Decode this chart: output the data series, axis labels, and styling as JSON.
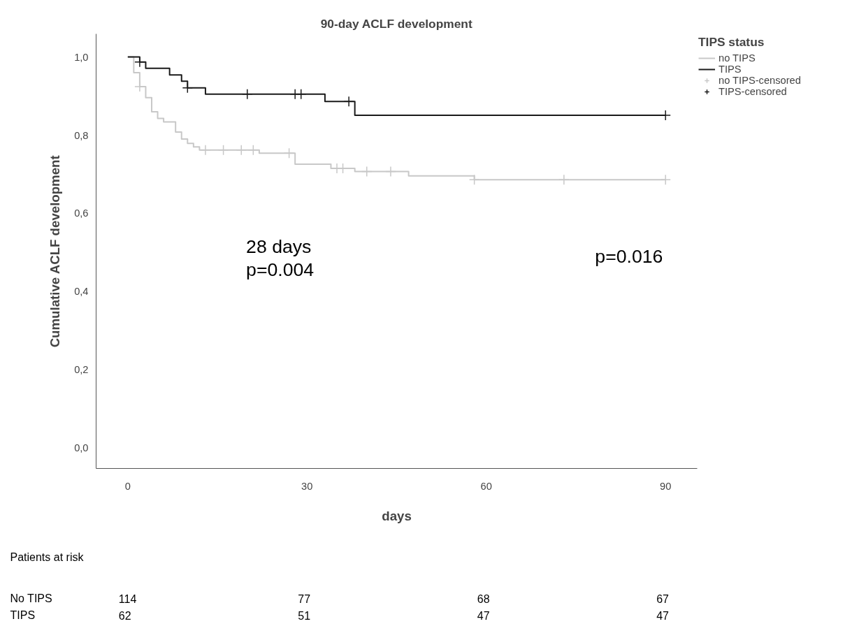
{
  "chart_data": {
    "type": "step",
    "title": "90-day ACLF development",
    "xlabel": "days",
    "ylabel": "Cumulative ACLF development",
    "legend_title": "TIPS status",
    "xlim": [
      -5.3,
      95.3
    ],
    "ylim": [
      -0.052,
      1.059
    ],
    "xticks": [
      0,
      30,
      60,
      90
    ],
    "yticks": [
      {
        "value": 0,
        "label": "0,0"
      },
      {
        "value": 0.2,
        "label": "0,2"
      },
      {
        "value": 0.4,
        "label": "0,4"
      },
      {
        "value": 0.6,
        "label": "0,6"
      },
      {
        "value": 0.8,
        "label": "0,8"
      },
      {
        "value": 1,
        "label": "1,0"
      }
    ],
    "grid": false,
    "legend": "right",
    "series": [
      {
        "name": "no TIPS",
        "color": "#c8c8c8",
        "x": [
          0,
          1,
          2,
          3,
          4,
          5,
          6,
          8,
          9,
          10,
          11,
          12,
          22,
          28,
          34,
          38,
          47,
          58,
          90
        ],
        "values": [
          1.0,
          0.96,
          0.924,
          0.896,
          0.86,
          0.843,
          0.834,
          0.808,
          0.79,
          0.779,
          0.77,
          0.762,
          0.754,
          0.726,
          0.715,
          0.707,
          0.696,
          0.686,
          0.686
        ]
      },
      {
        "name": "TIPS",
        "color": "#1a1a1a",
        "x": [
          0,
          2,
          3,
          7,
          9,
          10,
          13,
          33,
          38,
          90
        ],
        "values": [
          1.0,
          0.987,
          0.971,
          0.954,
          0.938,
          0.921,
          0.905,
          0.886,
          0.851,
          0.851
        ]
      },
      {
        "name": "no TIPS-censored",
        "type": "scatter",
        "marker": "cross",
        "color": "#c8c8c8",
        "x": [
          2,
          13,
          16,
          19,
          21,
          27,
          35,
          36,
          40,
          44,
          58,
          73,
          90
        ],
        "values": [
          0.924,
          0.762,
          0.762,
          0.762,
          0.762,
          0.754,
          0.715,
          0.715,
          0.707,
          0.707,
          0.686,
          0.686,
          0.686
        ]
      },
      {
        "name": "TIPS-censored",
        "type": "scatter",
        "marker": "cross",
        "color": "#1a1a1a",
        "x": [
          2,
          10,
          20,
          28,
          29,
          37,
          90
        ],
        "values": [
          0.987,
          0.921,
          0.905,
          0.905,
          0.905,
          0.886,
          0.851
        ]
      }
    ],
    "annotations": [
      "28 days",
      "p=0.004",
      "p=0.016",
      "Patients at risk",
      "No TIPS",
      "TIPS",
      "114",
      "77",
      "68",
      "67",
      "62",
      "51",
      "47",
      "47"
    ]
  }
}
